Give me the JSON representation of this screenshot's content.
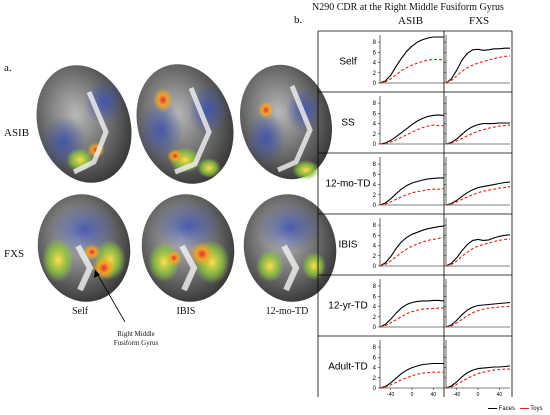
{
  "panel_a": {
    "label": "a.",
    "row_labels": [
      "ASIB",
      "FXS"
    ],
    "column_labels": [
      "Self",
      "IBIS",
      "12-mo-TD"
    ],
    "annotation": [
      "Right Middle",
      "Fusiform Gyrus"
    ]
  },
  "panel_b": {
    "label": "b.",
    "title": "N290 CDR at the Right Middle Fusiform Gyrus",
    "column_headers": [
      "ASIB",
      "FXS"
    ],
    "row_labels": [
      "Self",
      "SS",
      "12-mo-TD",
      "IBIS",
      "12-yr-TD",
      "Adult-TD"
    ],
    "legend": [
      {
        "name": "Faces",
        "color": "#000000"
      },
      {
        "name": "Toys",
        "color": "#d6291e"
      }
    ]
  },
  "chart_data": {
    "type": "line",
    "y_ticks": [
      0,
      2,
      4,
      6,
      8
    ],
    "x_ticks": [
      "-40",
      "0",
      "40"
    ],
    "ylim": [
      0,
      9
    ],
    "xlim": [
      -60,
      60
    ],
    "x": [
      -60,
      -50,
      -40,
      -30,
      -20,
      -10,
      0,
      10,
      20,
      30,
      40,
      50,
      60
    ],
    "grid": false,
    "legend_position": "bottom-right",
    "panels": [
      {
        "row": "Self",
        "group": "ASIB",
        "series": [
          {
            "name": "Faces",
            "values": [
              0,
              0.4,
              1.5,
              3.2,
              4.8,
              6.2,
              7.2,
              8.0,
              8.5,
              8.8,
              9.0,
              9.0,
              9.0
            ]
          },
          {
            "name": "Toys",
            "values": [
              0,
              0.2,
              0.8,
              1.6,
              2.4,
              3.0,
              3.5,
              3.9,
              4.2,
              4.5,
              4.6,
              4.6,
              4.5
            ]
          }
        ]
      },
      {
        "row": "Self",
        "group": "FXS",
        "series": [
          {
            "name": "Faces",
            "values": [
              0,
              0.8,
              2.5,
              4.5,
              5.8,
              6.5,
              6.6,
              6.4,
              6.5,
              6.7,
              6.7,
              6.8,
              6.8
            ]
          },
          {
            "name": "Toys",
            "values": [
              0,
              0.5,
              1.4,
              2.3,
              3.0,
              3.5,
              3.9,
              4.2,
              4.5,
              4.8,
              5.0,
              5.2,
              5.3
            ]
          }
        ]
      },
      {
        "row": "SS",
        "group": "ASIB",
        "series": [
          {
            "name": "Faces",
            "values": [
              0,
              0.2,
              0.7,
              1.4,
              2.2,
              3.0,
              3.8,
              4.5,
              5.0,
              5.4,
              5.6,
              5.7,
              5.6
            ]
          },
          {
            "name": "Toys",
            "values": [
              0,
              0.1,
              0.4,
              0.8,
              1.3,
              1.8,
              2.3,
              2.8,
              3.2,
              3.5,
              3.7,
              3.6,
              3.6
            ]
          }
        ]
      },
      {
        "row": "SS",
        "group": "FXS",
        "series": [
          {
            "name": "Faces",
            "values": [
              0,
              0.3,
              1.0,
              1.9,
              2.8,
              3.4,
              3.8,
              4.0,
              4.0,
              4.0,
              4.1,
              4.1,
              4.1
            ]
          },
          {
            "name": "Toys",
            "values": [
              0,
              0.2,
              0.6,
              1.1,
              1.6,
              2.1,
              2.5,
              2.8,
              3.1,
              3.3,
              3.5,
              3.6,
              3.7
            ]
          }
        ]
      },
      {
        "row": "12-mo-TD",
        "group": "ASIB",
        "series": [
          {
            "name": "Faces",
            "values": [
              0,
              0.4,
              1.2,
              2.2,
              3.1,
              3.8,
              4.3,
              4.6,
              4.9,
              5.1,
              5.2,
              5.3,
              5.3
            ]
          },
          {
            "name": "Toys",
            "values": [
              0,
              0.2,
              0.6,
              1.1,
              1.6,
              2.0,
              2.4,
              2.6,
              2.8,
              3.0,
              3.1,
              3.1,
              3.2
            ]
          }
        ]
      },
      {
        "row": "12-mo-TD",
        "group": "FXS",
        "series": [
          {
            "name": "Faces",
            "values": [
              0,
              0.3,
              0.9,
              1.7,
              2.4,
              3.0,
              3.4,
              3.6,
              3.8,
              4.0,
              4.2,
              4.4,
              4.5
            ]
          },
          {
            "name": "Toys",
            "values": [
              0,
              0.2,
              0.6,
              1.1,
              1.6,
              2.0,
              2.4,
              2.7,
              2.9,
              3.1,
              3.3,
              3.4,
              3.6
            ]
          }
        ]
      },
      {
        "row": "IBIS",
        "group": "ASIB",
        "series": [
          {
            "name": "Faces",
            "values": [
              0,
              0.6,
              1.8,
              3.4,
              4.7,
              5.6,
              6.2,
              6.6,
              7.0,
              7.3,
              7.5,
              7.7,
              7.8
            ]
          },
          {
            "name": "Toys",
            "values": [
              0,
              0.3,
              1.0,
              1.8,
              2.6,
              3.3,
              3.9,
              4.3,
              4.7,
              5.0,
              5.2,
              5.4,
              5.6
            ]
          }
        ]
      },
      {
        "row": "IBIS",
        "group": "FXS",
        "series": [
          {
            "name": "Faces",
            "values": [
              0,
              0.5,
              1.6,
              3.0,
              4.2,
              5.0,
              5.2,
              5.0,
              5.1,
              5.5,
              5.8,
              6.0,
              6.1
            ]
          },
          {
            "name": "Toys",
            "values": [
              0,
              0.3,
              1.0,
              1.9,
              2.7,
              3.4,
              3.9,
              4.2,
              4.5,
              4.8,
              5.0,
              5.2,
              5.3
            ]
          }
        ]
      },
      {
        "row": "12-yr-TD",
        "group": "ASIB",
        "series": [
          {
            "name": "Faces",
            "values": [
              0,
              0.5,
              1.5,
              2.7,
              3.7,
              4.4,
              4.8,
              5.0,
              5.1,
              5.1,
              5.2,
              5.2,
              5.1
            ]
          },
          {
            "name": "Toys",
            "values": [
              0,
              0.3,
              0.8,
              1.4,
              2.0,
              2.6,
              3.0,
              3.3,
              3.5,
              3.6,
              3.6,
              3.7,
              3.7
            ]
          }
        ]
      },
      {
        "row": "12-yr-TD",
        "group": "FXS",
        "series": [
          {
            "name": "Faces",
            "values": [
              0,
              0.4,
              1.3,
              2.4,
              3.3,
              3.9,
              4.2,
              4.3,
              4.4,
              4.5,
              4.6,
              4.7,
              4.8
            ]
          },
          {
            "name": "Toys",
            "values": [
              0,
              0.2,
              0.8,
              1.5,
              2.2,
              2.8,
              3.2,
              3.5,
              3.7,
              3.8,
              3.9,
              4.0,
              4.0
            ]
          }
        ]
      },
      {
        "row": "Adult-TD",
        "group": "ASIB",
        "series": [
          {
            "name": "Faces",
            "values": [
              0,
              0.3,
              1.0,
              1.9,
              2.8,
              3.5,
              4.0,
              4.3,
              4.6,
              4.7,
              4.8,
              4.8,
              4.8
            ]
          },
          {
            "name": "Toys",
            "values": [
              0,
              0.2,
              0.6,
              1.1,
              1.6,
              2.0,
              2.4,
              2.7,
              2.9,
              3.0,
              3.1,
              3.1,
              3.1
            ]
          }
        ]
      },
      {
        "row": "Adult-TD",
        "group": "FXS",
        "series": [
          {
            "name": "Faces",
            "values": [
              0,
              0.4,
              1.2,
              2.2,
              3.0,
              3.5,
              3.8,
              3.9,
              4.0,
              4.1,
              4.1,
              4.2,
              4.3
            ]
          },
          {
            "name": "Toys",
            "values": [
              0,
              0.2,
              0.7,
              1.3,
              1.9,
              2.4,
              2.8,
              3.1,
              3.3,
              3.5,
              3.6,
              3.7,
              3.7
            ]
          }
        ]
      }
    ]
  }
}
